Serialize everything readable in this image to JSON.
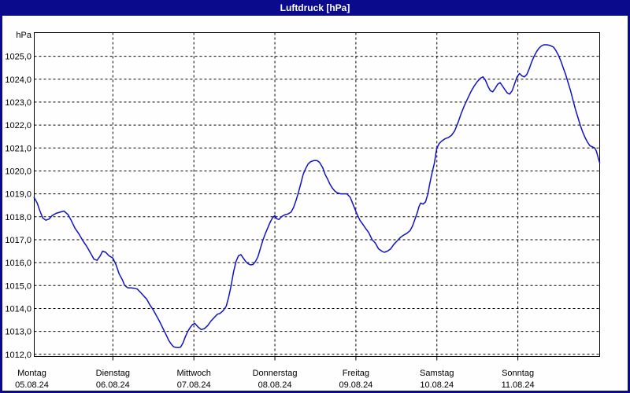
{
  "window": {
    "title": "Luftdruck [hPa]"
  },
  "colors": {
    "frame_navy": "#0a0a8c",
    "panel_white": "#fdfefd",
    "grid_black": "#000000",
    "series_blue": "#1212c4",
    "title_text": "#ffffff"
  },
  "chart_data": {
    "type": "line",
    "title": "Luftdruck [hPa]",
    "y_axis": {
      "unit_label": "hPa",
      "min": 1012,
      "max": 1025,
      "step": 1.0,
      "tick_values": [
        1012,
        1013,
        1014,
        1015,
        1016,
        1017,
        1018,
        1019,
        1020,
        1021,
        1022,
        1023,
        1024,
        1025
      ],
      "tick_labels": [
        "1012,0",
        "1013,0",
        "1014,0",
        "1015,0",
        "1016,0",
        "1017,0",
        "1018,0",
        "1019,0",
        "1020,0",
        "1021,0",
        "1022,0",
        "1023,0",
        "1024,0",
        "1025,0"
      ],
      "grid": "dashed-horizontal"
    },
    "x_axis": {
      "unit": "days",
      "range_days": [
        0,
        7
      ],
      "grid": "dashed-vertical-at-midnight",
      "days": [
        {
          "name": "Montag",
          "date": "05.08.24"
        },
        {
          "name": "Dienstag",
          "date": "06.08.24"
        },
        {
          "name": "Mittwoch",
          "date": "07.08.24"
        },
        {
          "name": "Donnerstag",
          "date": "08.08.24"
        },
        {
          "name": "Freitag",
          "date": "09.08.24"
        },
        {
          "name": "Samstag",
          "date": "10.08.24"
        },
        {
          "name": "Sonntag",
          "date": "11.08.24"
        }
      ]
    },
    "series": [
      {
        "name": "Luftdruck",
        "color": "#1212c4",
        "points": [
          [
            0.026,
            1018.85
          ],
          [
            0.065,
            1018.6
          ],
          [
            0.094,
            1018.3
          ],
          [
            0.133,
            1017.95
          ],
          [
            0.172,
            1017.85
          ],
          [
            0.211,
            1017.9
          ],
          [
            0.25,
            1018.05
          ],
          [
            0.299,
            1018.15
          ],
          [
            0.348,
            1018.2
          ],
          [
            0.396,
            1018.25
          ],
          [
            0.445,
            1018.1
          ],
          [
            0.484,
            1017.85
          ],
          [
            0.533,
            1017.5
          ],
          [
            0.581,
            1017.25
          ],
          [
            0.63,
            1016.95
          ],
          [
            0.679,
            1016.7
          ],
          [
            0.727,
            1016.4
          ],
          [
            0.766,
            1016.15
          ],
          [
            0.805,
            1016.1
          ],
          [
            0.844,
            1016.3
          ],
          [
            0.873,
            1016.5
          ],
          [
            0.912,
            1016.45
          ],
          [
            0.951,
            1016.3
          ],
          [
            1.0,
            1016.2
          ],
          [
            1.039,
            1015.9
          ],
          [
            1.078,
            1015.5
          ],
          [
            1.117,
            1015.25
          ],
          [
            1.146,
            1015.0
          ],
          [
            1.185,
            1014.9
          ],
          [
            1.224,
            1014.9
          ],
          [
            1.263,
            1014.88
          ],
          [
            1.302,
            1014.85
          ],
          [
            1.341,
            1014.7
          ],
          [
            1.38,
            1014.55
          ],
          [
            1.419,
            1014.4
          ],
          [
            1.457,
            1014.15
          ],
          [
            1.496,
            1013.95
          ],
          [
            1.535,
            1013.7
          ],
          [
            1.574,
            1013.45
          ],
          [
            1.613,
            1013.17
          ],
          [
            1.652,
            1012.89
          ],
          [
            1.691,
            1012.6
          ],
          [
            1.72,
            1012.45
          ],
          [
            1.75,
            1012.33
          ],
          [
            1.779,
            1012.3
          ],
          [
            1.808,
            1012.29
          ],
          [
            1.837,
            1012.32
          ],
          [
            1.866,
            1012.5
          ],
          [
            1.895,
            1012.77
          ],
          [
            1.925,
            1013.0
          ],
          [
            1.954,
            1013.17
          ],
          [
            1.983,
            1013.3
          ],
          [
            2.012,
            1013.35
          ],
          [
            2.05,
            1013.2
          ],
          [
            2.09,
            1013.08
          ],
          [
            2.13,
            1013.12
          ],
          [
            2.17,
            1013.25
          ],
          [
            2.21,
            1013.45
          ],
          [
            2.25,
            1013.6
          ],
          [
            2.29,
            1013.75
          ],
          [
            2.32,
            1013.78
          ],
          [
            2.36,
            1013.9
          ],
          [
            2.4,
            1014.1
          ],
          [
            2.43,
            1014.5
          ],
          [
            2.46,
            1015.0
          ],
          [
            2.49,
            1015.6
          ],
          [
            2.52,
            1016.05
          ],
          [
            2.55,
            1016.3
          ],
          [
            2.58,
            1016.35
          ],
          [
            2.61,
            1016.2
          ],
          [
            2.64,
            1016.05
          ],
          [
            2.67,
            1015.95
          ],
          [
            2.7,
            1015.9
          ],
          [
            2.73,
            1015.92
          ],
          [
            2.76,
            1016.05
          ],
          [
            2.79,
            1016.25
          ],
          [
            2.82,
            1016.6
          ],
          [
            2.85,
            1016.95
          ],
          [
            2.88,
            1017.25
          ],
          [
            2.91,
            1017.5
          ],
          [
            2.94,
            1017.75
          ],
          [
            2.97,
            1017.95
          ],
          [
            3.0,
            1018.05
          ],
          [
            3.02,
            1017.92
          ],
          [
            3.05,
            1017.88
          ],
          [
            3.08,
            1018.0
          ],
          [
            3.12,
            1018.08
          ],
          [
            3.16,
            1018.12
          ],
          [
            3.2,
            1018.2
          ],
          [
            3.23,
            1018.4
          ],
          [
            3.26,
            1018.7
          ],
          [
            3.29,
            1019.05
          ],
          [
            3.32,
            1019.45
          ],
          [
            3.35,
            1019.85
          ],
          [
            3.38,
            1020.1
          ],
          [
            3.41,
            1020.3
          ],
          [
            3.44,
            1020.4
          ],
          [
            3.48,
            1020.45
          ],
          [
            3.52,
            1020.45
          ],
          [
            3.55,
            1020.38
          ],
          [
            3.59,
            1020.15
          ],
          [
            3.62,
            1019.85
          ],
          [
            3.65,
            1019.65
          ],
          [
            3.68,
            1019.42
          ],
          [
            3.71,
            1019.25
          ],
          [
            3.74,
            1019.12
          ],
          [
            3.77,
            1019.05
          ],
          [
            3.81,
            1019.0
          ],
          [
            3.85,
            1019.0
          ],
          [
            3.89,
            1019.0
          ],
          [
            3.93,
            1018.85
          ],
          [
            3.97,
            1018.5
          ],
          [
            4.01,
            1018.15
          ],
          [
            4.05,
            1017.85
          ],
          [
            4.09,
            1017.65
          ],
          [
            4.12,
            1017.5
          ],
          [
            4.16,
            1017.3
          ],
          [
            4.2,
            1017.0
          ],
          [
            4.24,
            1016.85
          ],
          [
            4.28,
            1016.6
          ],
          [
            4.32,
            1016.5
          ],
          [
            4.35,
            1016.45
          ],
          [
            4.39,
            1016.5
          ],
          [
            4.43,
            1016.6
          ],
          [
            4.47,
            1016.8
          ],
          [
            4.51,
            1016.95
          ],
          [
            4.55,
            1017.1
          ],
          [
            4.59,
            1017.2
          ],
          [
            4.63,
            1017.28
          ],
          [
            4.67,
            1017.4
          ],
          [
            4.7,
            1017.6
          ],
          [
            4.73,
            1017.9
          ],
          [
            4.76,
            1018.2
          ],
          [
            4.78,
            1018.45
          ],
          [
            4.8,
            1018.6
          ],
          [
            4.83,
            1018.55
          ],
          [
            4.86,
            1018.65
          ],
          [
            4.89,
            1019.0
          ],
          [
            4.91,
            1019.4
          ],
          [
            4.93,
            1019.75
          ],
          [
            4.95,
            1020.05
          ],
          [
            4.97,
            1020.35
          ],
          [
            4.99,
            1020.8
          ],
          [
            5.0,
            1021.0
          ],
          [
            5.03,
            1021.2
          ],
          [
            5.06,
            1021.3
          ],
          [
            5.1,
            1021.4
          ],
          [
            5.14,
            1021.45
          ],
          [
            5.18,
            1021.55
          ],
          [
            5.22,
            1021.75
          ],
          [
            5.26,
            1022.1
          ],
          [
            5.3,
            1022.5
          ],
          [
            5.34,
            1022.85
          ],
          [
            5.38,
            1023.15
          ],
          [
            5.42,
            1023.45
          ],
          [
            5.46,
            1023.7
          ],
          [
            5.5,
            1023.9
          ],
          [
            5.54,
            1024.05
          ],
          [
            5.57,
            1024.1
          ],
          [
            5.6,
            1023.95
          ],
          [
            5.63,
            1023.7
          ],
          [
            5.66,
            1023.5
          ],
          [
            5.69,
            1023.45
          ],
          [
            5.72,
            1023.6
          ],
          [
            5.75,
            1023.78
          ],
          [
            5.78,
            1023.85
          ],
          [
            5.81,
            1023.7
          ],
          [
            5.84,
            1023.55
          ],
          [
            5.87,
            1023.4
          ],
          [
            5.9,
            1023.35
          ],
          [
            5.93,
            1023.5
          ],
          [
            5.96,
            1023.8
          ],
          [
            5.99,
            1024.1
          ],
          [
            6.02,
            1024.25
          ],
          [
            6.05,
            1024.15
          ],
          [
            6.08,
            1024.1
          ],
          [
            6.11,
            1024.2
          ],
          [
            6.14,
            1024.45
          ],
          [
            6.17,
            1024.75
          ],
          [
            6.2,
            1025.0
          ],
          [
            6.23,
            1025.2
          ],
          [
            6.26,
            1025.35
          ],
          [
            6.29,
            1025.45
          ],
          [
            6.32,
            1025.5
          ],
          [
            6.36,
            1025.5
          ],
          [
            6.4,
            1025.47
          ],
          [
            6.44,
            1025.4
          ],
          [
            6.47,
            1025.25
          ],
          [
            6.5,
            1025.05
          ],
          [
            6.53,
            1024.8
          ],
          [
            6.56,
            1024.5
          ],
          [
            6.59,
            1024.2
          ],
          [
            6.62,
            1023.85
          ],
          [
            6.65,
            1023.5
          ],
          [
            6.68,
            1023.1
          ],
          [
            6.71,
            1022.7
          ],
          [
            6.74,
            1022.35
          ],
          [
            6.77,
            1022.0
          ],
          [
            6.8,
            1021.7
          ],
          [
            6.83,
            1021.45
          ],
          [
            6.86,
            1021.25
          ],
          [
            6.89,
            1021.1
          ],
          [
            6.92,
            1021.05
          ],
          [
            6.95,
            1021.0
          ],
          [
            6.97,
            1020.85
          ],
          [
            6.99,
            1020.6
          ],
          [
            7.01,
            1020.35
          ]
        ]
      }
    ]
  }
}
